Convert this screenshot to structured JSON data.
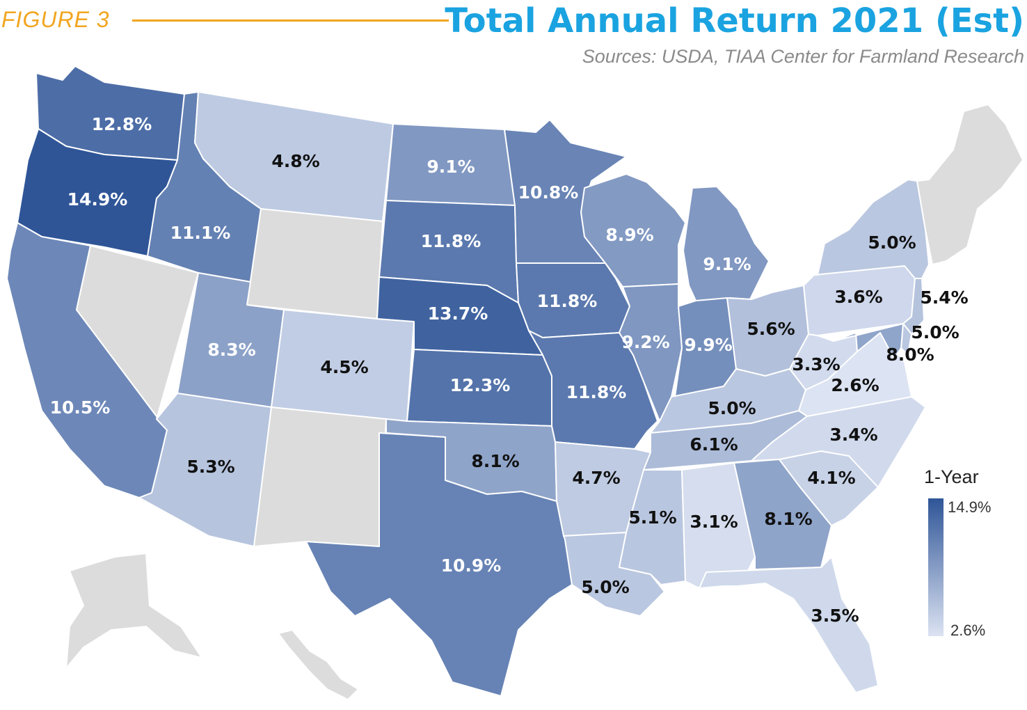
{
  "header": {
    "figure_label": "FIGURE 3",
    "title": "Total Annual Return 2021 (Est)",
    "source": "Sources: USDA, TIAA Center for Farmland Research"
  },
  "colors": {
    "accent_orange": "#f2a51f",
    "title_blue": "#1aa3e0",
    "scale_high": "#2f5597",
    "scale_low": "#dce3f2",
    "no_data": "#dcdcdc"
  },
  "legend": {
    "title": "1-Year",
    "max_label": "14.9%",
    "min_label": "2.6%",
    "max_value": 14.9,
    "min_value": 2.6
  },
  "states": [
    {
      "code": "WA",
      "label": "12.8%",
      "value": 12.8
    },
    {
      "code": "OR",
      "label": "14.9%",
      "value": 14.9
    },
    {
      "code": "CA",
      "label": "10.5%",
      "value": 10.5
    },
    {
      "code": "ID",
      "label": "11.1%",
      "value": 11.1
    },
    {
      "code": "NV",
      "label": "",
      "value": null
    },
    {
      "code": "MT",
      "label": "4.8%",
      "value": 4.8
    },
    {
      "code": "WY",
      "label": "",
      "value": null
    },
    {
      "code": "UT",
      "label": "8.3%",
      "value": 8.3
    },
    {
      "code": "AZ",
      "label": "5.3%",
      "value": 5.3
    },
    {
      "code": "CO",
      "label": "4.5%",
      "value": 4.5
    },
    {
      "code": "NM",
      "label": "",
      "value": null
    },
    {
      "code": "ND",
      "label": "9.1%",
      "value": 9.1
    },
    {
      "code": "SD",
      "label": "11.8%",
      "value": 11.8
    },
    {
      "code": "NE",
      "label": "13.7%",
      "value": 13.7
    },
    {
      "code": "KS",
      "label": "12.3%",
      "value": 12.3
    },
    {
      "code": "OK",
      "label": "8.1%",
      "value": 8.1
    },
    {
      "code": "TX",
      "label": "10.9%",
      "value": 10.9
    },
    {
      "code": "MN",
      "label": "10.8%",
      "value": 10.8
    },
    {
      "code": "IA",
      "label": "11.8%",
      "value": 11.8
    },
    {
      "code": "MO",
      "label": "11.8%",
      "value": 11.8
    },
    {
      "code": "AR",
      "label": "4.7%",
      "value": 4.7
    },
    {
      "code": "LA",
      "label": "5.0%",
      "value": 5.0
    },
    {
      "code": "WI",
      "label": "8.9%",
      "value": 8.9
    },
    {
      "code": "IL",
      "label": "9.2%",
      "value": 9.2
    },
    {
      "code": "MI",
      "label": "9.1%",
      "value": 9.1
    },
    {
      "code": "IN",
      "label": "9.9%",
      "value": 9.9
    },
    {
      "code": "OH",
      "label": "5.6%",
      "value": 5.6
    },
    {
      "code": "KY",
      "label": "5.0%",
      "value": 5.0
    },
    {
      "code": "TN",
      "label": "6.1%",
      "value": 6.1
    },
    {
      "code": "MS",
      "label": "5.1%",
      "value": 5.1
    },
    {
      "code": "AL",
      "label": "3.1%",
      "value": 3.1
    },
    {
      "code": "GA",
      "label": "8.1%",
      "value": 8.1
    },
    {
      "code": "FL",
      "label": "3.5%",
      "value": 3.5
    },
    {
      "code": "SC",
      "label": "4.1%",
      "value": 4.1
    },
    {
      "code": "NC",
      "label": "3.4%",
      "value": 3.4
    },
    {
      "code": "VA",
      "label": "2.6%",
      "value": 2.6
    },
    {
      "code": "WV",
      "label": "3.3%",
      "value": 3.3
    },
    {
      "code": "PA",
      "label": "3.6%",
      "value": 3.6
    },
    {
      "code": "NY",
      "label": "5.0%",
      "value": 5.0
    },
    {
      "code": "NJ",
      "label": "5.4%",
      "value": 5.4
    },
    {
      "code": "DE",
      "label": "5.0%",
      "value": 5.0
    },
    {
      "code": "MD",
      "label": "8.0%",
      "value": 8.0
    },
    {
      "code": "NE_REGION",
      "label": "",
      "value": null
    },
    {
      "code": "AK",
      "label": "",
      "value": null
    },
    {
      "code": "HI",
      "label": "",
      "value": null
    }
  ]
}
